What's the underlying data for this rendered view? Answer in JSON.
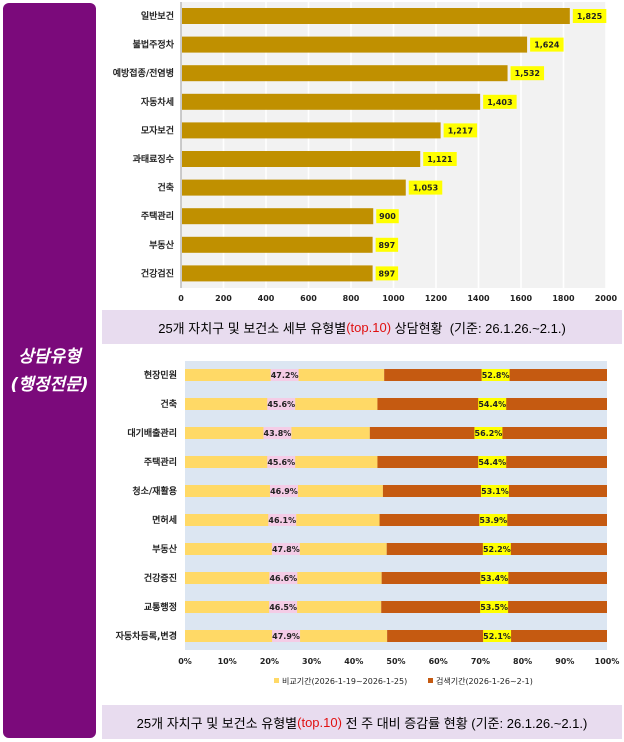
{
  "side": {
    "line1": "상담유형",
    "line2": "(행정전문)"
  },
  "chart_data": [
    {
      "type": "bar",
      "orientation": "horizontal",
      "title": "25개 자치구 및 보건소 세부 유형별(top.10) 상담현황  (기준: 26.1.26.~2.1.)",
      "title_parts": [
        "25개 자치구 및 보건소 세부 유형별",
        "(top.10)",
        " 상담현황  (기준: 26.1.26.~2.1.)"
      ],
      "categories": [
        "일반보건",
        "불법주정차",
        "예방접종/전염병",
        "자동차세",
        "모자보건",
        "과태료징수",
        "건축",
        "주택관리",
        "부동산",
        "건강검진"
      ],
      "values": [
        1825,
        1624,
        1532,
        1403,
        1217,
        1121,
        1053,
        900,
        897,
        897
      ],
      "labels": [
        "1,825",
        "1,624",
        "1,532",
        "1,403",
        "1,217",
        "1,121",
        "1,053",
        "900",
        "897",
        "897"
      ],
      "xlim": [
        0,
        2000
      ],
      "ticks": [
        "0",
        "200",
        "400",
        "600",
        "800",
        "1000",
        "1200",
        "1400",
        "1600",
        "1800",
        "2000"
      ],
      "color": "#c09000",
      "label_bg": "#ffff00"
    },
    {
      "type": "bar",
      "orientation": "horizontal",
      "stacked": "percent",
      "title": "25개 자치구 및 보건소 유형별(top.10) 전 주 대비 증감률 현황 (기준: 26.1.26.~2.1.)",
      "title_parts": [
        "25개 자치구 및 보건소 유형별",
        "(top.10)",
        " 전 주 대비 증감률 현황 (기준: 26.1.26.~2.1.)"
      ],
      "categories": [
        "현장민원",
        "건축",
        "대기배출관리",
        "주택관리",
        "청소/재활용",
        "면허세",
        "부동산",
        "건강증진",
        "교통행정",
        "자동차등록,변경"
      ],
      "series": [
        {
          "name": "비교기간(2026-1-19~2026-1-25)",
          "color": "#ffd966",
          "values": [
            47.2,
            45.6,
            43.8,
            45.6,
            46.9,
            46.1,
            47.8,
            46.6,
            46.5,
            47.9
          ],
          "labels": [
            "47.2%",
            "45.6%",
            "43.8%",
            "45.6%",
            "46.9%",
            "46.1%",
            "47.8%",
            "46.6%",
            "46.5%",
            "47.9%"
          ]
        },
        {
          "name": "검색기간(2026-1-26~2-1)",
          "color": "#c55a11",
          "values": [
            52.8,
            54.4,
            56.2,
            54.4,
            53.1,
            53.9,
            52.2,
            53.4,
            53.5,
            52.1
          ],
          "labels": [
            "52.8%",
            "54.4%",
            "56.2%",
            "54.4%",
            "53.1%",
            "53.9%",
            "52.2%",
            "53.4%",
            "53.5%",
            "52.1%"
          ]
        }
      ],
      "ticks": [
        "0%",
        "10%",
        "20%",
        "30%",
        "40%",
        "50%",
        "60%",
        "70%",
        "80%",
        "90%",
        "100%"
      ],
      "legend": "bottom"
    }
  ]
}
